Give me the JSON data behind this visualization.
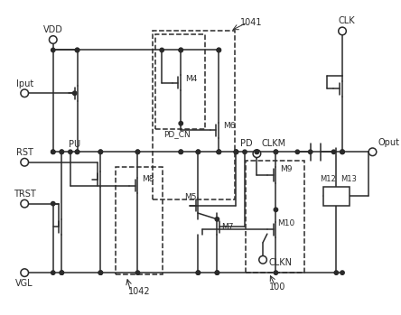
{
  "background_color": "#ffffff",
  "line_color": "#2a2a2a",
  "lw": 1.1,
  "figsize": [
    4.44,
    3.49
  ],
  "dpi": 100,
  "labels": {
    "VDD": "VDD",
    "Iput": "Iput",
    "RST": "RST",
    "TRST": "TRST",
    "VGL": "VGL",
    "CLK": "CLK",
    "CLKM": "CLKM",
    "CLKN": "CLKN",
    "Oput": "Oput",
    "PU": "PU",
    "PD": "PD",
    "PD_CN": "PD_CN",
    "M4": "M4",
    "M6": "M6",
    "M8": "M8",
    "M5": "M5",
    "M7": "M7",
    "M9": "M9",
    "M10": "M10",
    "M12": "M12",
    "M13": "M13",
    "box1041": "1041",
    "box1042": "1042",
    "box100": "100"
  }
}
